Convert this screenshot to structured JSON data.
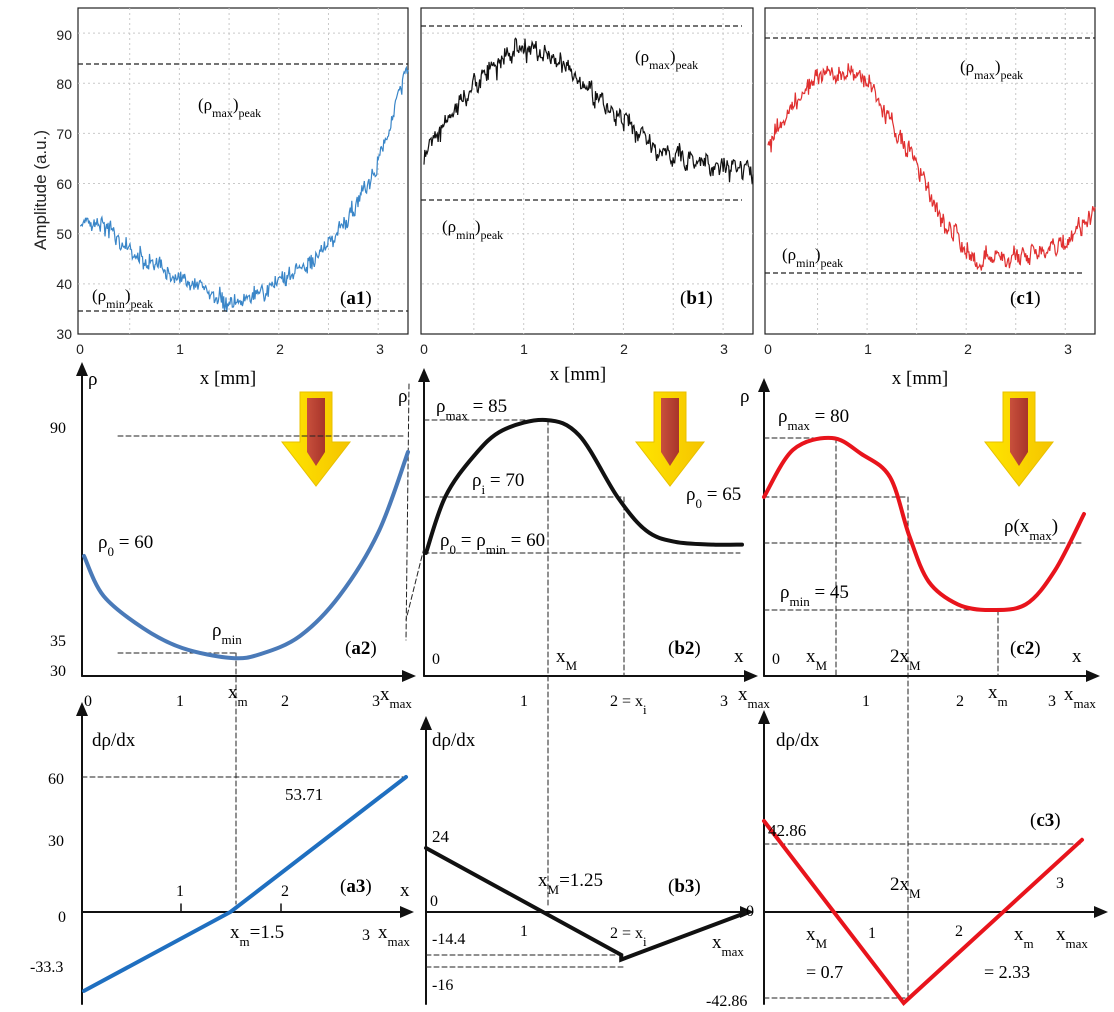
{
  "figure": {
    "ylabel_top": "Amplitude (a.u.)",
    "xlabel_top": "x [mm]"
  },
  "chart_data": [
    {
      "id": "a1",
      "panel_label": "(a1)",
      "type": "line",
      "x_range": [
        0,
        3.3
      ],
      "ylim": [
        30,
        95
      ],
      "x_ticks": [
        "0",
        "1",
        "2",
        "3"
      ],
      "y_ticks": [
        "30",
        "40",
        "50",
        "60",
        "70",
        "80",
        "90"
      ],
      "xlabel": "x [mm]",
      "ylabel": "Amplitude (a.u.)",
      "grid": true,
      "color": "#3a86c8",
      "profile_x": [
        0,
        0.3,
        0.6,
        0.9,
        1.2,
        1.5,
        1.8,
        2.1,
        2.4,
        2.7,
        3.0,
        3.15,
        3.3
      ],
      "profile_y": [
        53,
        50,
        46,
        42,
        39,
        36,
        38,
        41,
        46,
        53,
        64,
        74,
        84
      ],
      "noise_amplitude": 2.6,
      "reference_lines": [
        {
          "y": 84,
          "label": "(ρmax)peak"
        },
        {
          "y": 34.5,
          "label": "(ρmin)peak"
        }
      ]
    },
    {
      "id": "b1",
      "panel_label": "(b1)",
      "type": "line",
      "x_range": [
        0,
        3.3
      ],
      "ylim": [
        30,
        95
      ],
      "x_ticks": [
        "0",
        "1",
        "2",
        "3"
      ],
      "xlabel": "x [mm]",
      "grid": true,
      "color": "#111111",
      "profile_x": [
        0,
        0.3,
        0.6,
        0.9,
        1.2,
        1.5,
        1.8,
        2.1,
        2.4,
        2.7,
        3.0,
        3.3
      ],
      "profile_y": [
        66,
        74,
        82,
        87,
        86,
        82,
        76,
        71,
        67,
        65,
        64,
        62
      ],
      "noise_amplitude": 3.0,
      "reference_lines": [
        {
          "y": 91.5,
          "label": "(ρmax)peak"
        },
        {
          "y": 57,
          "label": "(ρmin)peak"
        }
      ]
    },
    {
      "id": "c1",
      "panel_label": "(c1)",
      "type": "line",
      "x_range": [
        0,
        3.3
      ],
      "ylim": [
        30,
        95
      ],
      "x_ticks": [
        "0",
        "1",
        "2",
        "3"
      ],
      "xlabel": "x [mm]",
      "grid": true,
      "color": "#e03030",
      "profile_x": [
        0,
        0.3,
        0.6,
        0.9,
        1.2,
        1.5,
        1.8,
        2.1,
        2.4,
        2.7,
        3.0,
        3.3
      ],
      "profile_y": [
        68,
        77,
        82,
        82,
        74,
        64,
        51,
        45,
        45,
        46,
        48,
        55
      ],
      "noise_amplitude": 2.8,
      "reference_lines": [
        {
          "y": 89.5,
          "label": "(ρmax)peak"
        },
        {
          "y": 42,
          "label": "(ρmin)peak"
        }
      ]
    },
    {
      "id": "a2",
      "panel_label": "(a2)",
      "type": "line",
      "ylabel": "ρ",
      "color": "#4a7ab8",
      "x_range": [
        0,
        3.3
      ],
      "y_range": [
        30,
        90
      ],
      "x": [
        0,
        0.2,
        0.6,
        1.0,
        1.5,
        1.8,
        2.2,
        2.6,
        3.0,
        3.3
      ],
      "y": [
        60,
        50,
        42,
        37,
        34.5,
        35.5,
        40,
        50,
        66,
        86
      ],
      "x_ticks": [
        "0",
        "1",
        "2",
        "3"
      ],
      "y_ticks": [
        "30",
        "35",
        "90"
      ],
      "x_axis_label": "x",
      "x_axis_label_sub": "max",
      "annotations": [
        {
          "text": "ρ",
          "sub": "0",
          "after": " = 60"
        },
        {
          "text": "ρ",
          "sub": "min",
          "after": ""
        },
        {
          "text": "x",
          "sub": "m",
          "after": ""
        }
      ]
    },
    {
      "id": "b2",
      "panel_label": "(b2)",
      "type": "line",
      "ylabel": "ρ",
      "color": "#111111",
      "x_range": [
        0,
        3.3
      ],
      "y_range": [
        45,
        92
      ],
      "x": [
        0,
        0.2,
        0.5,
        0.8,
        1.25,
        1.6,
        2.0,
        2.3,
        2.6,
        3.0,
        3.3
      ],
      "y": [
        60,
        70,
        78,
        83,
        85,
        82,
        70,
        64,
        62,
        61.5,
        61.5
      ],
      "x_ticks": [
        "0",
        "1",
        "2",
        "3"
      ],
      "x_tick_suffix_2": " = x",
      "x_axis_label": "x",
      "x_axis_label_sub": "max",
      "annotations": [
        {
          "text": "ρ",
          "sub": "max",
          "after": " = 85"
        },
        {
          "text": "ρ",
          "sub": "i",
          "after": " = 70"
        },
        {
          "text": "ρ",
          "sub": "0",
          "after": " = ρ",
          "sub2": "min",
          "after2": " = 60"
        },
        {
          "text": "x",
          "sub": "M",
          "after": ""
        }
      ]
    },
    {
      "id": "c2",
      "panel_label": "(c2)",
      "type": "line",
      "ylabel": "ρ",
      "color": "#e8141c",
      "x_range": [
        0,
        3.3
      ],
      "y_range": [
        35,
        90
      ],
      "x": [
        0,
        0.3,
        0.7,
        1.0,
        1.3,
        1.5,
        1.7,
        2.0,
        2.33,
        2.7,
        3.0,
        3.3
      ],
      "y": [
        65,
        77,
        80,
        76,
        70,
        58,
        50,
        46,
        45,
        46,
        52,
        62
      ],
      "x_ticks": [
        "0",
        "1",
        "2",
        "3"
      ],
      "x_axis_label": "x",
      "x_axis_label_sub": "max",
      "annotations": [
        {
          "text": "ρ",
          "sub": "max",
          "after": " = 80"
        },
        {
          "text": "ρ",
          "sub": "0",
          "after": " = 65"
        },
        {
          "text": "ρ(x",
          "sub": "max",
          "after": ")"
        },
        {
          "text": "ρ",
          "sub": "min",
          "after": " = 45"
        },
        {
          "text": "x",
          "sub": "M",
          "after": ""
        },
        {
          "text": "2x",
          "sub": "M",
          "after": ""
        },
        {
          "text": "x",
          "sub": "m",
          "after": ""
        }
      ]
    },
    {
      "id": "a3",
      "panel_label": "(a3)",
      "type": "line",
      "ylabel": "dρ/dx",
      "color": "#1f6fc0",
      "x_range": [
        0,
        3.3
      ],
      "y_range": [
        -33.3,
        60
      ],
      "x": [
        0,
        1.5,
        3.3
      ],
      "y": [
        -33.3,
        0,
        57
      ],
      "x_ticks": [
        "1",
        "2",
        "3"
      ],
      "y_ticks": [
        "60",
        "30",
        "0",
        "-33.3"
      ],
      "x_axis_label": "x",
      "x_axis_label_sub": "max",
      "annotations": [
        {
          "text": "53.71",
          "sub": "",
          "after": ""
        },
        {
          "text": "x",
          "sub": "m",
          "after": "=1.5"
        }
      ]
    },
    {
      "id": "b3",
      "panel_label": "(b3)",
      "type": "line",
      "ylabel": "dρ/dx",
      "color": "#111111",
      "x_range": [
        0,
        3.3
      ],
      "y_range": [
        -16,
        24
      ],
      "x": [
        0,
        2.0,
        2.0,
        3.3
      ],
      "y": [
        21.5,
        -14.4,
        -16,
        0
      ],
      "x_ticks": [
        "0",
        "1",
        "2"
      ],
      "x_tick_suffix_2": " = x",
      "x_axis_label": "x",
      "x_axis_label_sub": "max",
      "annotations": [
        {
          "text": "24",
          "sub": "",
          "after": ""
        },
        {
          "text": "x",
          "sub": "M",
          "after": "=1.25"
        },
        {
          "text": "-14.4",
          "sub": "",
          "after": ""
        },
        {
          "text": "-16",
          "sub": "",
          "after": ""
        }
      ]
    },
    {
      "id": "c3",
      "panel_label": "(c3)",
      "type": "line",
      "ylabel": "dρ/dx",
      "color": "#e8141c",
      "x_range": [
        0,
        3.3
      ],
      "y_range": [
        -42.86,
        42.86
      ],
      "x": [
        0,
        1.45,
        3.3
      ],
      "y": [
        42.86,
        -42.86,
        34
      ],
      "x_ticks": [
        "0",
        "1",
        "2",
        "3"
      ],
      "x_axis_label": "x",
      "x_axis_label_sub": "max",
      "annotations": [
        {
          "text": "42.86",
          "sub": "",
          "after": ""
        },
        {
          "text": "-42.86",
          "sub": "",
          "after": ""
        },
        {
          "text": "2x",
          "sub": "M",
          "after": ""
        },
        {
          "text": "x",
          "sub": "M",
          "after": ""
        },
        {
          "text": "= 0.7",
          "sub": "",
          "after": ""
        },
        {
          "text": "x",
          "sub": "m",
          "after": ""
        },
        {
          "text": "= 2.33",
          "sub": "",
          "after": ""
        }
      ]
    }
  ]
}
